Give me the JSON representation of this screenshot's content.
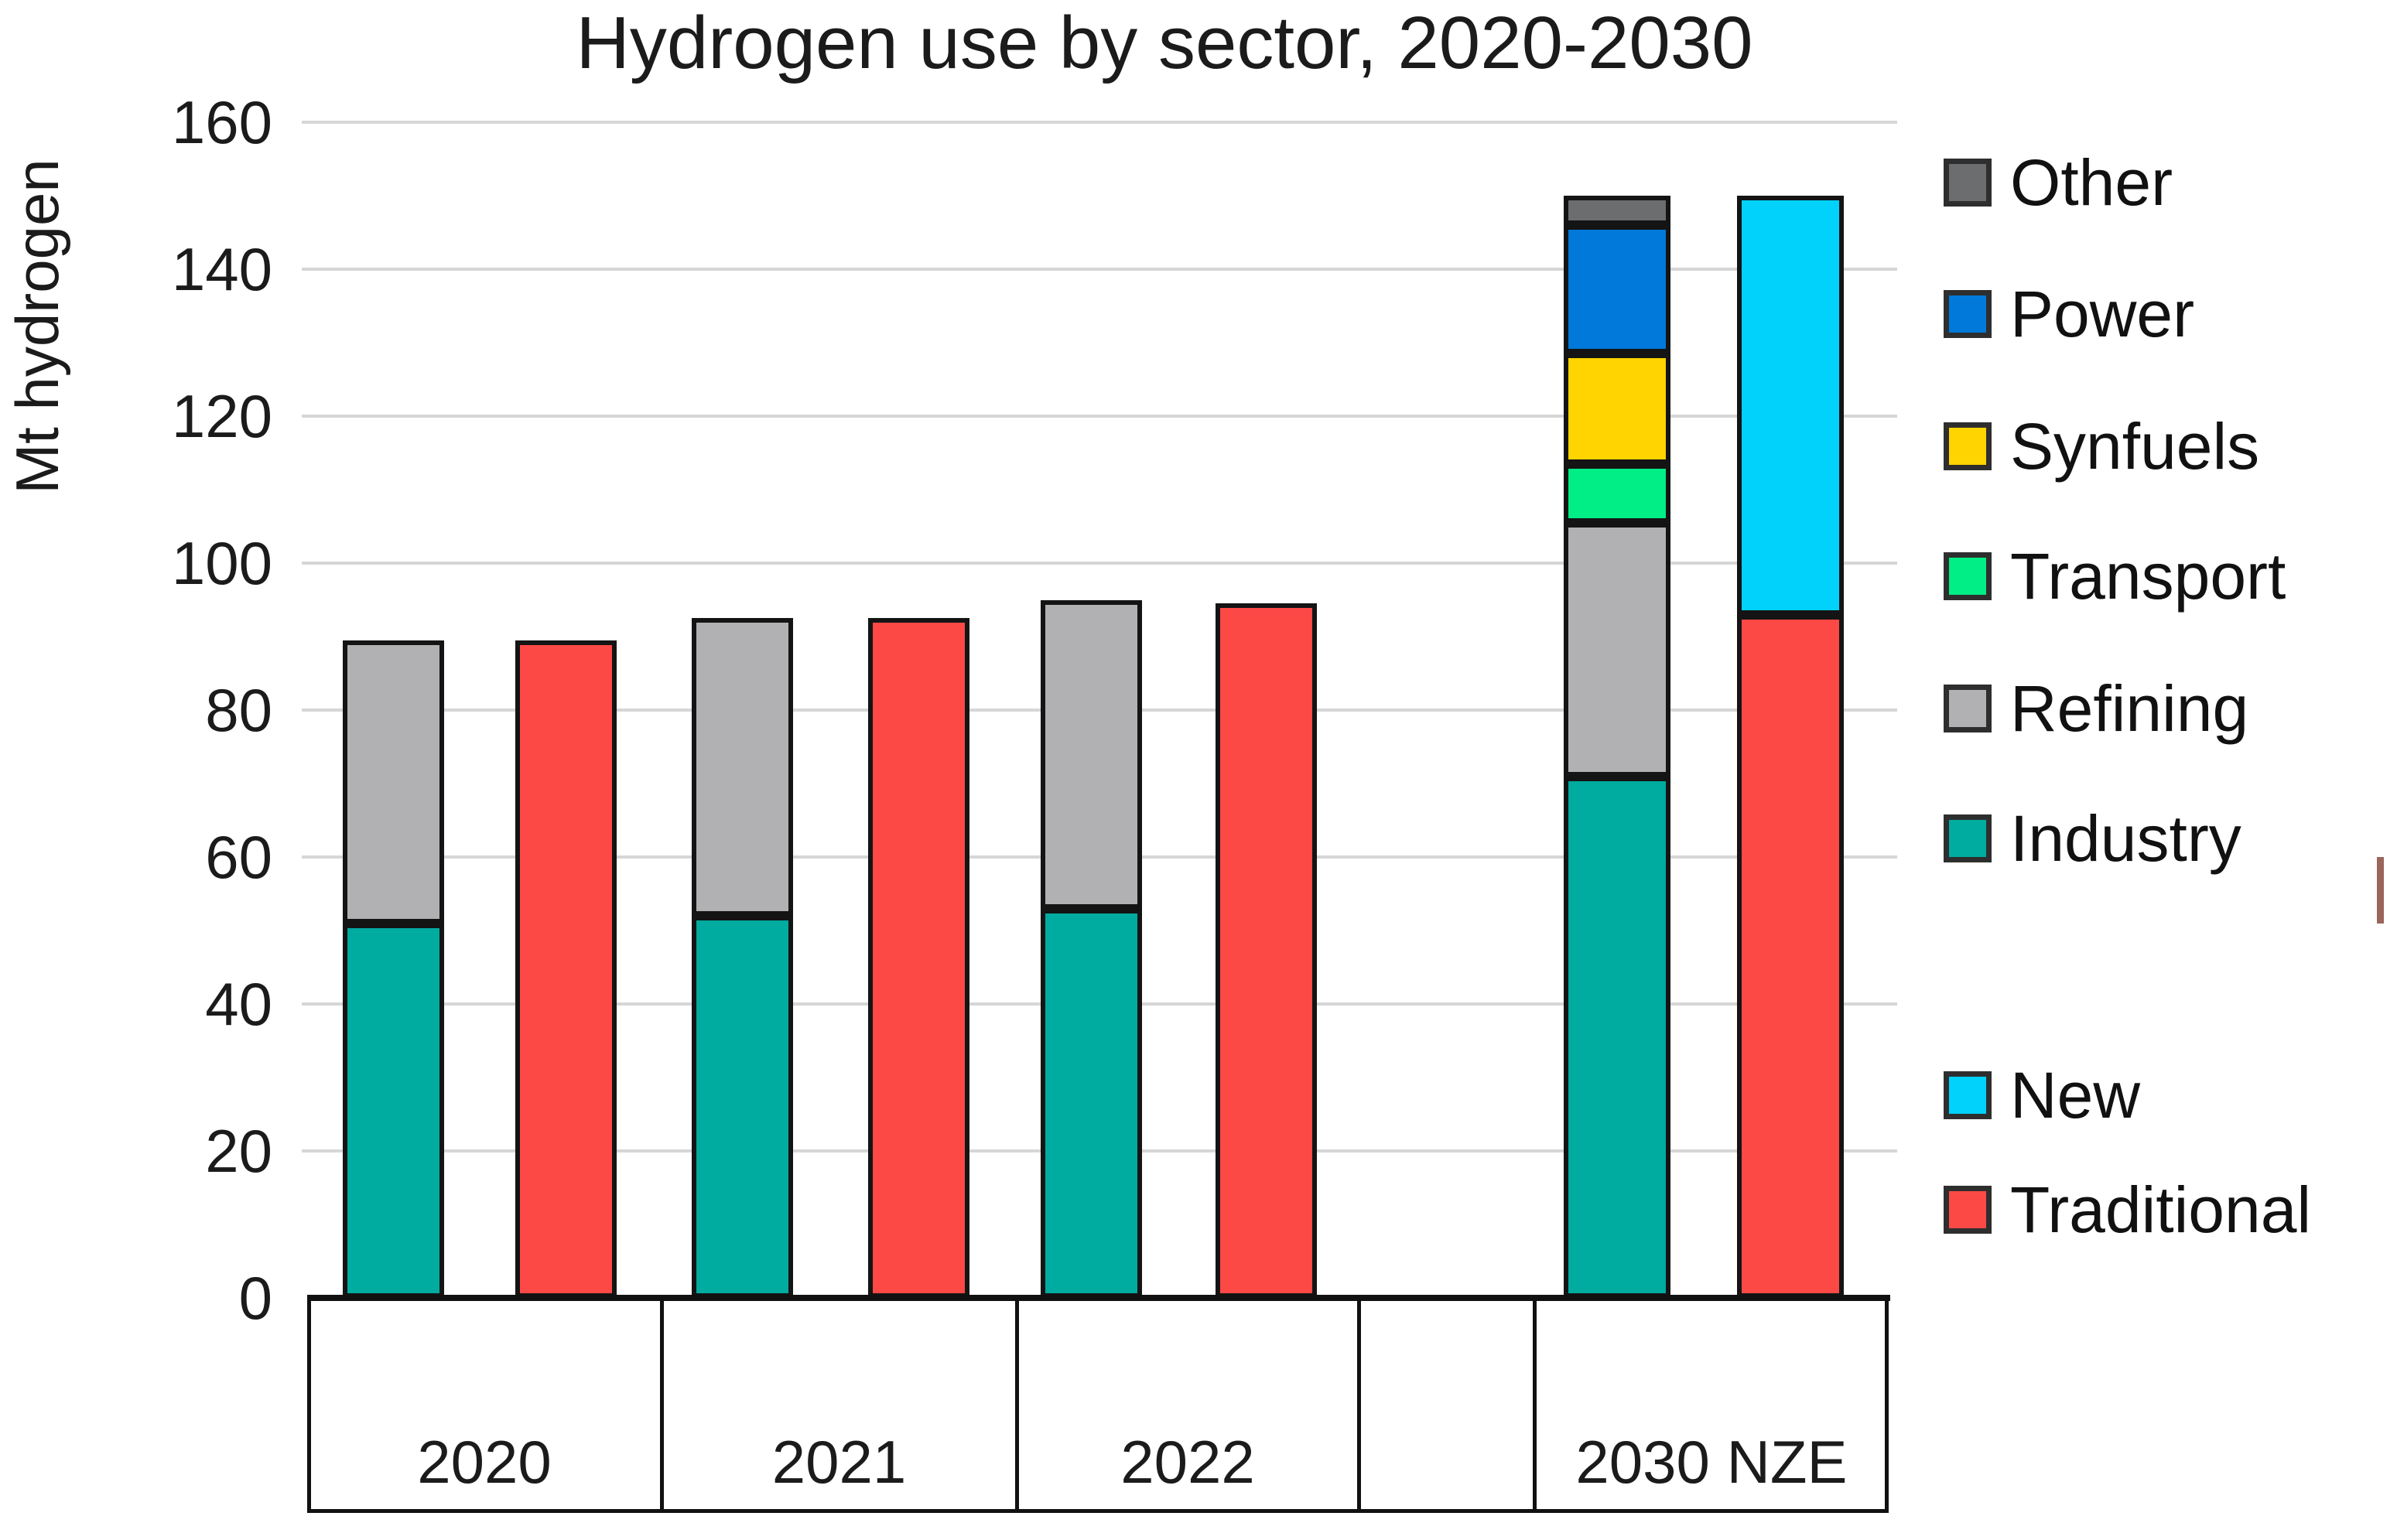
{
  "title": "Hydrogen use by sector, 2020-2030",
  "y_axis": {
    "label": "Mt hydrogen",
    "ticks": [
      0,
      20,
      40,
      60,
      80,
      100,
      120,
      140,
      160
    ]
  },
  "x_axis": {
    "categories": [
      "2020",
      "2021",
      "2022",
      "2030 NZE"
    ],
    "empty_slot_label": ""
  },
  "chart_data": {
    "type": "bar",
    "subtype": "grouped-stacked",
    "title": "Hydrogen use by sector, 2020-2030",
    "xlabel": "",
    "ylabel": "Mt hydrogen",
    "ylim": [
      0,
      160
    ],
    "ytick_step": 20,
    "grid": true,
    "legend_position": "right",
    "categories": [
      "2020",
      "2021",
      "2022",
      "2030 NZE"
    ],
    "series_sector": [
      {
        "name": "Industry",
        "color": "#00aba0",
        "values": [
          51,
          52,
          53,
          71
        ]
      },
      {
        "name": "Refining",
        "color": "#b1b1b3",
        "values": [
          38.5,
          40.5,
          42,
          34.5
        ]
      },
      {
        "name": "Transport",
        "color": "#00ee85",
        "values": [
          0,
          0,
          0,
          8
        ]
      },
      {
        "name": "Synfuels",
        "color": "#ffd400",
        "values": [
          0,
          0,
          0,
          15
        ]
      },
      {
        "name": "Power",
        "color": "#0079da",
        "values": [
          0,
          0,
          0,
          17.5
        ]
      },
      {
        "name": "Other",
        "color": "#6b6d6e",
        "values": [
          0,
          0,
          0,
          4
        ]
      }
    ],
    "series_use": [
      {
        "name": "Traditional",
        "color": "#fc4946",
        "values": [
          89.5,
          92.5,
          94.5,
          93
        ]
      },
      {
        "name": "New",
        "color": "#00d2fb",
        "values": [
          0,
          0,
          0,
          57
        ]
      }
    ],
    "totals_sector": [
      89.5,
      92.5,
      95,
      150
    ],
    "totals_use": [
      89.5,
      92.5,
      94.5,
      150
    ]
  }
}
